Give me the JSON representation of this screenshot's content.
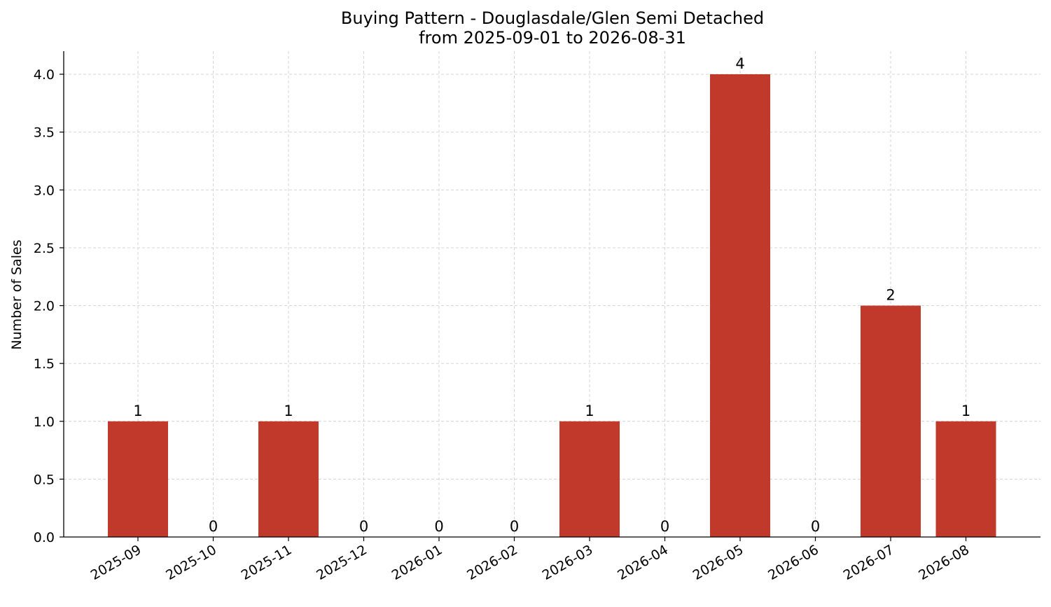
{
  "chart_data": {
    "type": "bar",
    "title": "Buying Pattern - Douglasdale/Glen Semi Detached",
    "subtitle": "from 2025-09-01 to 2026-08-31",
    "xlabel": "",
    "ylabel": "Number of Sales",
    "categories": [
      "2025-09",
      "2025-10",
      "2025-11",
      "2025-12",
      "2026-01",
      "2026-02",
      "2026-03",
      "2026-04",
      "2026-05",
      "2026-06",
      "2026-07",
      "2026-08"
    ],
    "values": [
      1,
      0,
      1,
      0,
      0,
      0,
      1,
      0,
      4,
      0,
      2,
      1
    ],
    "ylim": [
      0,
      4.2
    ],
    "yticks": [
      "0.0",
      "0.5",
      "1.0",
      "1.5",
      "2.0",
      "2.5",
      "3.0",
      "3.5",
      "4.0"
    ],
    "grid": true,
    "legend": "none",
    "bar_color": "#c0392b"
  }
}
